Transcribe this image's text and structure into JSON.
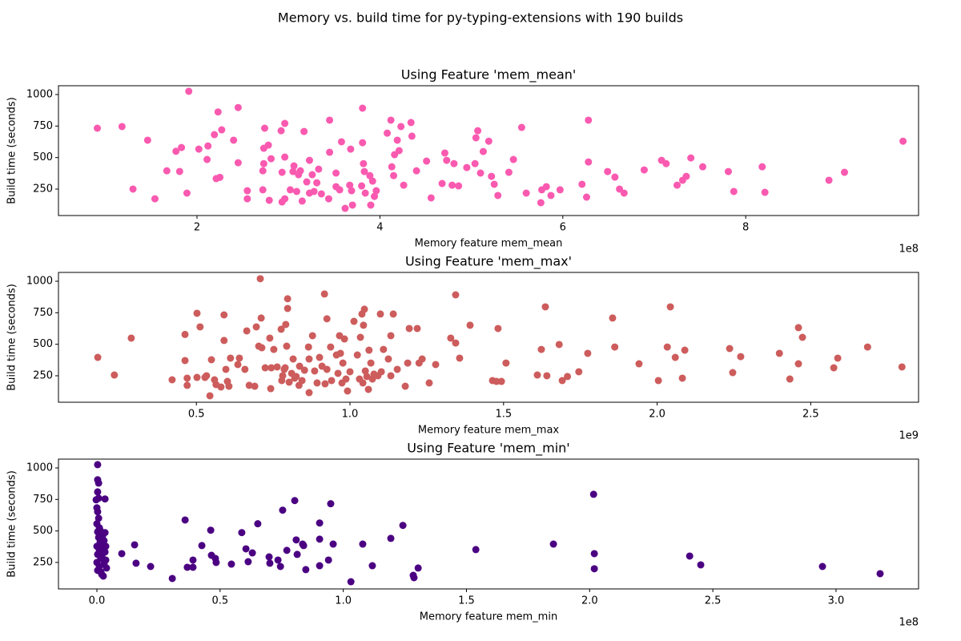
{
  "title": "Memory vs. build time for py-typing-extensions with 190 builds",
  "chart_data": [
    {
      "type": "scatter",
      "title": "Using Feature 'mem_mean'",
      "x_label": "Memory feature mem_mean",
      "y_label": "Build time (seconds)",
      "x_offset_label": "1e8",
      "color": "#f95ab0",
      "xlim": [
        0.485,
        9.89
      ],
      "ylim": [
        40,
        1070
      ],
      "xticks": [
        2,
        4,
        6,
        8
      ],
      "yticks": [
        250,
        500,
        750,
        1000
      ],
      "x": [
        0.91,
        1.18,
        1.3,
        1.46,
        1.54,
        1.67,
        1.77,
        1.81,
        1.83,
        1.89,
        1.91,
        2.02,
        2.11,
        2.12,
        2.19,
        2.23,
        2.21,
        2.25,
        2.27,
        2.4,
        2.45,
        2.45,
        2.55,
        2.55,
        2.74,
        2.73,
        2.73,
        2.78,
        2.79,
        2.81,
        2.72,
        2.72,
        2.92,
        2.93,
        2.93,
        2.96,
        2.96,
        2.96,
        3.02,
        3.05,
        3.06,
        3.09,
        3.11,
        3.13,
        3.15,
        3.17,
        3.2,
        3.23,
        3.23,
        3.26,
        3.28,
        3.31,
        3.33,
        3.36,
        3.44,
        3.45,
        3.45,
        3.52,
        3.52,
        3.56,
        3.58,
        3.62,
        3.67,
        3.68,
        3.69,
        3.7,
        3.8,
        3.81,
        3.81,
        3.82,
        3.83,
        3.84,
        3.89,
        3.9,
        3.92,
        3.94,
        3.96,
        4.08,
        4.12,
        4.13,
        4.15,
        4.16,
        4.19,
        4.21,
        4.23,
        4.26,
        4.34,
        4.35,
        4.4,
        4.51,
        4.56,
        4.68,
        4.71,
        4.73,
        4.79,
        4.81,
        4.86,
        4.95,
        5.04,
        5.05,
        5.07,
        5.1,
        5.13,
        5.19,
        5.22,
        5.25,
        5.29,
        5.41,
        5.46,
        5.55,
        5.6,
        5.76,
        5.77,
        5.82,
        5.87,
        5.97,
        6.21,
        6.26,
        6.28,
        6.28,
        6.49,
        6.57,
        6.62,
        6.67,
        6.89,
        7.08,
        7.13,
        7.25,
        7.31,
        7.35,
        7.4,
        7.53,
        7.81,
        7.87,
        8.18,
        8.21,
        8.91,
        9.08,
        9.72
      ],
      "values": [
        733,
        746,
        250,
        638,
        173,
        395,
        550,
        390,
        580,
        218,
        1026,
        567,
        485,
        592,
        682,
        862,
        333,
        343,
        720,
        638,
        897,
        459,
        237,
        173,
        733,
        574,
        452,
        599,
        161,
        491,
        395,
        244,
        713,
        383,
        148,
        771,
        504,
        173,
        244,
        389,
        434,
        231,
        364,
        395,
        155,
        707,
        307,
        478,
        218,
        364,
        231,
        300,
        408,
        212,
        173,
        797,
        542,
        269,
        377,
        244,
        625,
        97,
        281,
        567,
        237,
        123,
        275,
        618,
        892,
        452,
        389,
        218,
        357,
        123,
        313,
        192,
        237,
        694,
        797,
        427,
        357,
        523,
        638,
        555,
        746,
        281,
        778,
        670,
        395,
        472,
        180,
        294,
        536,
        478,
        281,
        452,
        275,
        421,
        452,
        657,
        713,
        377,
        548,
        630,
        351,
        288,
        199,
        383,
        485,
        739,
        218,
        142,
        244,
        269,
        199,
        244,
        288,
        186,
        797,
        465,
        389,
        345,
        250,
        218,
        402,
        478,
        452,
        281,
        320,
        351,
        497,
        427,
        389,
        231,
        427,
        224,
        320,
        383,
        630
      ]
    },
    {
      "type": "scatter",
      "title": "Using Feature 'mem_max'",
      "x_label": "Memory feature mem_max",
      "y_label": "Build time (seconds)",
      "x_offset_label": "1e9",
      "color": "#cd5c5c",
      "xlim": [
        0.051,
        2.851
      ],
      "ylim": [
        40,
        1070
      ],
      "xticks": [
        0.5,
        {
          "value": 1,
          "label": "1.0"
        },
        1.5,
        {
          "value": 2,
          "label": "2.0"
        },
        2.5
      ],
      "yticks": [
        250,
        500,
        750,
        1000
      ],
      "x": [
        0.179,
        0.233,
        0.288,
        0.421,
        0.463,
        0.463,
        0.47,
        0.47,
        0.502,
        0.502,
        0.512,
        0.528,
        0.533,
        0.544,
        0.549,
        0.559,
        0.564,
        0.58,
        0.59,
        0.59,
        0.596,
        0.601,
        0.606,
        0.611,
        0.635,
        0.64,
        0.658,
        0.664,
        0.672,
        0.69,
        0.695,
        0.703,
        0.708,
        0.711,
        0.713,
        0.724,
        0.739,
        0.742,
        0.744,
        0.752,
        0.763,
        0.776,
        0.778,
        0.781,
        0.786,
        0.789,
        0.791,
        0.794,
        0.797,
        0.797,
        0.802,
        0.81,
        0.815,
        0.82,
        0.825,
        0.834,
        0.836,
        0.844,
        0.852,
        0.865,
        0.867,
        0.867,
        0.878,
        0.885,
        0.893,
        0.901,
        0.909,
        0.917,
        0.919,
        0.925,
        0.925,
        0.937,
        0.94,
        0.956,
        0.961,
        0.966,
        0.969,
        0.974,
        0.977,
        0.982,
        0.987,
        0.992,
        1.0,
        1.013,
        1.024,
        1.031,
        1.034,
        1.039,
        1.042,
        1.044,
        1.047,
        1.05,
        1.055,
        1.06,
        1.062,
        1.068,
        1.073,
        1.078,
        1.091,
        1.099,
        1.102,
        1.109,
        1.125,
        1.133,
        1.133,
        1.141,
        1.154,
        1.18,
        1.188,
        1.193,
        1.219,
        1.225,
        1.235,
        1.258,
        1.279,
        1.328,
        1.344,
        1.344,
        1.357,
        1.391,
        1.464,
        1.477,
        1.482,
        1.493,
        1.508,
        1.61,
        1.623,
        1.636,
        1.641,
        1.681,
        1.691,
        1.708,
        1.745,
        1.774,
        1.855,
        1.862,
        1.941,
        2.004,
        2.033,
        2.043,
        2.059,
        2.082,
        2.09,
        2.236,
        2.246,
        2.272,
        2.398,
        2.432,
        2.46,
        2.46,
        2.473,
        2.575,
        2.588,
        2.685,
        2.797
      ],
      "values": [
        396,
        256,
        549,
        218,
        578,
        371,
        231,
        174,
        746,
        237,
        638,
        237,
        250,
        91,
        377,
        218,
        180,
        161,
        733,
        530,
        301,
        205,
        167,
        390,
        339,
        390,
        301,
        606,
        174,
        167,
        638,
        485,
        1020,
        708,
        472,
        313,
        549,
        148,
        313,
        459,
        320,
        619,
        212,
        250,
        301,
        313,
        657,
        485,
        784,
        861,
        199,
        269,
        383,
        231,
        244,
        174,
        326,
        212,
        294,
        478,
        383,
        116,
        568,
        288,
        193,
        396,
        326,
        899,
        186,
        702,
        301,
        478,
        212,
        415,
        269,
        568,
        428,
        193,
        351,
        542,
        224,
        129,
        282,
        682,
        415,
        224,
        555,
        740,
        193,
        651,
        778,
        288,
        244,
        142,
        453,
        351,
        224,
        263,
        250,
        740,
        282,
        459,
        383,
        250,
        568,
        740,
        301,
        167,
        351,
        625,
        625,
        351,
        383,
        193,
        339,
        549,
        510,
        892,
        390,
        651,
        212,
        205,
        625,
        205,
        351,
        256,
        459,
        797,
        250,
        498,
        212,
        244,
        282,
        428,
        708,
        478,
        345,
        212,
        478,
        797,
        396,
        231,
        453,
        466,
        275,
        402,
        428,
        224,
        345,
        632,
        555,
        313,
        390,
        478,
        320
      ]
    },
    {
      "type": "scatter",
      "title": "Using Feature 'mem_min'",
      "x_label": "Memory feature mem_min",
      "y_label": "Build time (seconds)",
      "x_offset_label": "1e8",
      "color": "#4b0082",
      "xlim": [
        -0.156,
        3.335
      ],
      "ylim": [
        40,
        1070
      ],
      "xticks": [
        {
          "value": 0,
          "label": "0.0"
        },
        0.5,
        {
          "value": 1,
          "label": "1.0"
        },
        1.5,
        {
          "value": 2,
          "label": "2.0"
        },
        2.5,
        {
          "value": 3,
          "label": "3.0"
        }
      ],
      "yticks": [
        250,
        500,
        750,
        1000
      ],
      "x": [
        0.003,
        0.003,
        0.007,
        0.003,
        0.007,
        0,
        0.003,
        0.007,
        0,
        0.01,
        0.003,
        0.007,
        0.013,
        0,
        0.01,
        0.003,
        0.016,
        0,
        0.01,
        0.003,
        0.02,
        0.026,
        0.013,
        0.023,
        0.029,
        0.026,
        0.033,
        0.02,
        0.036,
        0.029,
        0.039,
        0.016,
        0.033,
        0.036,
        -0.003,
        0.033,
        0.026,
        0.101,
        0.153,
        0.159,
        0.218,
        0.306,
        0.358,
        0.367,
        0.39,
        0.39,
        0.426,
        0.462,
        0.465,
        0.481,
        0.484,
        0.546,
        0.588,
        0.605,
        0.614,
        0.631,
        0.653,
        0.699,
        0.702,
        0.735,
        0.745,
        0.754,
        0.771,
        0.803,
        0.809,
        0.813,
        0.835,
        0.839,
        0.848,
        0.904,
        0.904,
        0.904,
        0.94,
        0.949,
        0.959,
        1.031,
        1.079,
        1.118,
        1.193,
        1.242,
        1.284,
        1.287,
        1.304,
        1.538,
        1.853,
        2.016,
        2.019,
        2.019,
        2.406,
        2.451,
        2.945,
        3.179
      ],
      "values": [
        1026,
        906,
        880,
        810,
        760,
        684,
        652,
        601,
        557,
        525,
        493,
        448,
        410,
        378,
        346,
        314,
        282,
        250,
        218,
        187,
        155,
        142,
        506,
        461,
        423,
        365,
        333,
        301,
        269,
        237,
        206,
        174,
        487,
        378,
        747,
        754,
        417,
        320,
        390,
        244,
        218,
        123,
        587,
        212,
        269,
        212,
        384,
        506,
        307,
        282,
        250,
        237,
        487,
        358,
        256,
        326,
        557,
        294,
        244,
        269,
        218,
        665,
        346,
        741,
        429,
        314,
        396,
        384,
        193,
        435,
        563,
        224,
        269,
        716,
        396,
        97,
        396,
        224,
        441,
        544,
        148,
        129,
        206,
        352,
        396,
        791,
        320,
        200,
        301,
        231,
        218,
        161
      ]
    }
  ]
}
